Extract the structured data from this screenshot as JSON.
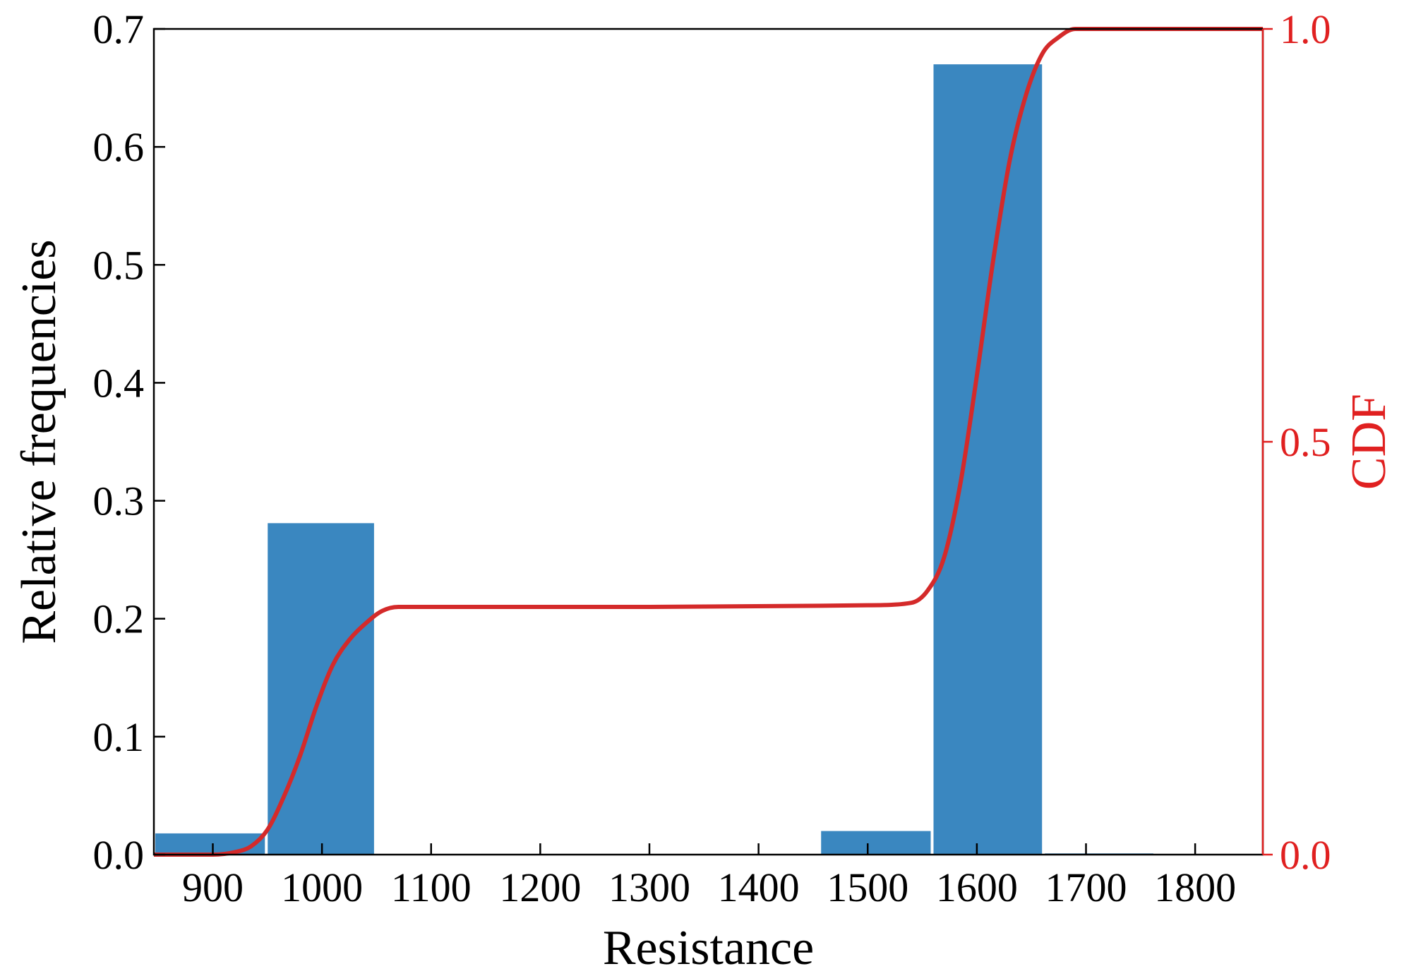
{
  "chart_data": {
    "type": "bar",
    "xlabel": "Resistance",
    "ylabel": "Relative frequencies",
    "y2label": "CDF",
    "xlim": [
      846,
      1862
    ],
    "ylim": [
      0,
      0.7
    ],
    "y2lim": [
      0,
      1.0
    ],
    "x_ticks": [
      "900",
      "1000",
      "1100",
      "1200",
      "1300",
      "1400",
      "1500",
      "1600",
      "1700",
      "1800"
    ],
    "y_ticks": [
      "0.0",
      "0.1",
      "0.2",
      "0.3",
      "0.4",
      "0.5",
      "0.6",
      "0.7"
    ],
    "y2_ticks": [
      "0.0",
      "0.5",
      "1.0"
    ],
    "bins": [
      {
        "start": 846,
        "end": 949,
        "value": 0.018
      },
      {
        "start": 949,
        "end": 1049,
        "value": 0.281
      },
      {
        "start": 1049,
        "end": 1150,
        "value": 0.0
      },
      {
        "start": 1150,
        "end": 1252,
        "value": 0.0
      },
      {
        "start": 1252,
        "end": 1354,
        "value": 0.0
      },
      {
        "start": 1354,
        "end": 1456,
        "value": 0.0
      },
      {
        "start": 1456,
        "end": 1559,
        "value": 0.02
      },
      {
        "start": 1559,
        "end": 1661,
        "value": 0.67
      },
      {
        "start": 1661,
        "end": 1763,
        "value": 0.001
      }
    ],
    "cdf": {
      "x": [
        846,
        900,
        920,
        935,
        950,
        965,
        980,
        995,
        1010,
        1025,
        1040,
        1055,
        1070,
        1100,
        1300,
        1500,
        1540,
        1555,
        1570,
        1585,
        1600,
        1615,
        1630,
        1645,
        1660,
        1675,
        1690,
        1710,
        1862
      ],
      "y": [
        0.0,
        0.0,
        0.003,
        0.01,
        0.03,
        0.07,
        0.12,
        0.18,
        0.23,
        0.26,
        0.28,
        0.295,
        0.3,
        0.3,
        0.3,
        0.302,
        0.305,
        0.32,
        0.36,
        0.45,
        0.58,
        0.72,
        0.84,
        0.92,
        0.97,
        0.99,
        1.0,
        1.0,
        1.0
      ]
    },
    "colors": {
      "bars": "#3a87c0",
      "cdf": "#d42a2a",
      "axis": "#000000",
      "right_axis": "#e02020"
    },
    "grid": false
  }
}
